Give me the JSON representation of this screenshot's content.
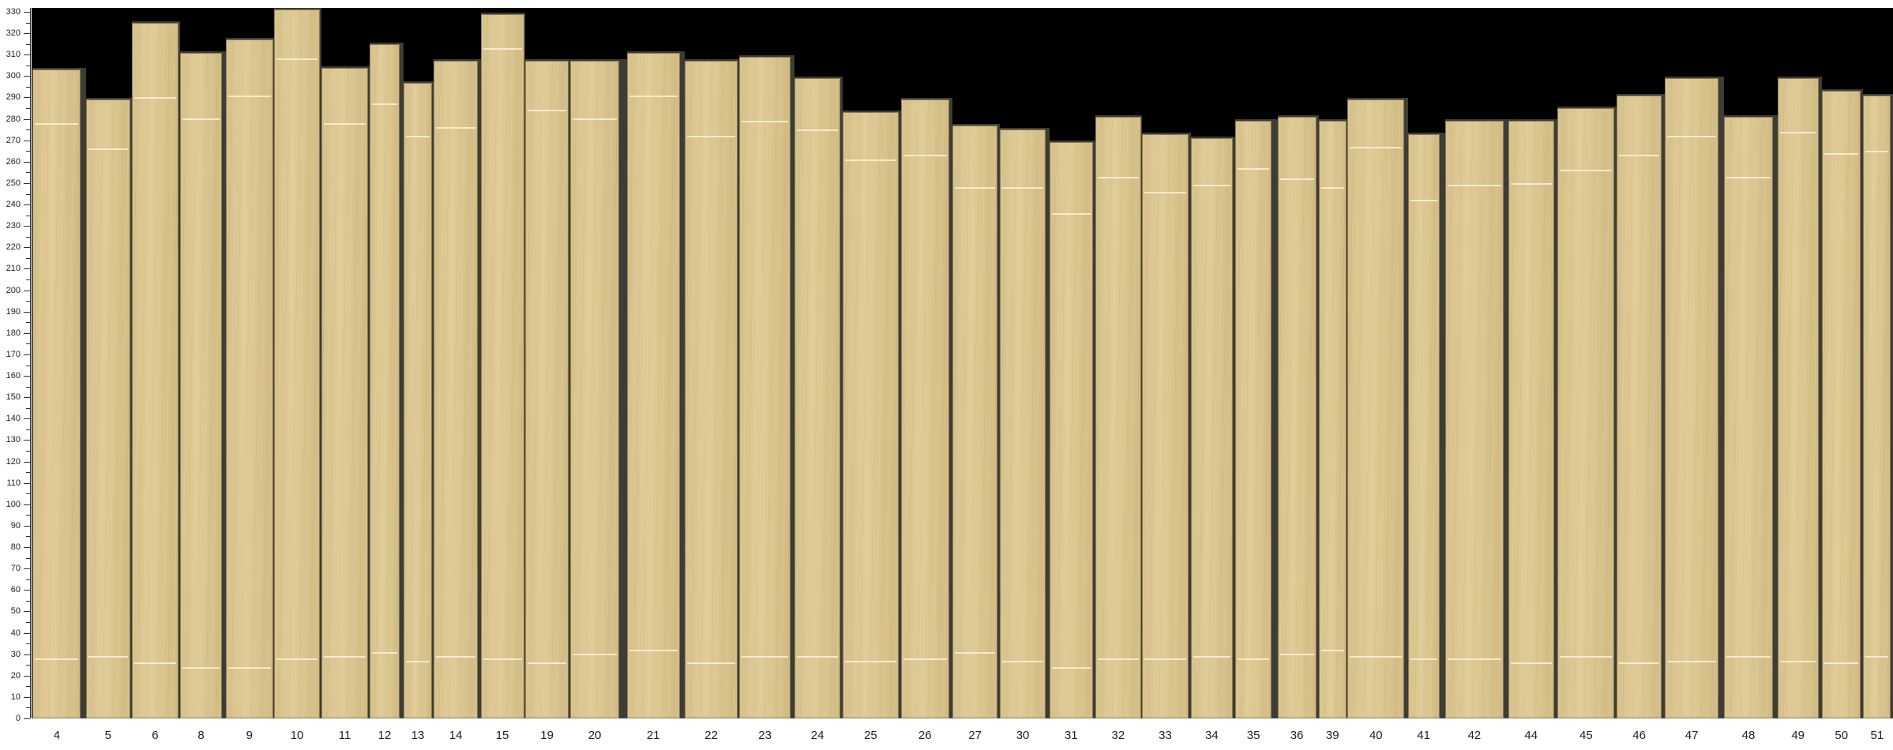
{
  "y_axis": {
    "min": 0,
    "max": 330,
    "major_step": 10,
    "minor_step": 5
  },
  "colors": {
    "plank": "#d9c48e",
    "background": "#000000",
    "gap": "#3d3d36",
    "mark": "#f6eed6"
  },
  "planks": [
    {
      "label": "4",
      "length": 303,
      "marks": [
        27,
        277
      ]
    },
    {
      "label": "5",
      "length": 289,
      "marks": [
        28,
        265
      ]
    },
    {
      "label": "6",
      "length": 325,
      "marks": [
        25,
        289
      ]
    },
    {
      "label": "8",
      "length": 311,
      "marks": [
        23,
        279
      ]
    },
    {
      "label": "9",
      "length": 317,
      "marks": [
        23,
        290
      ]
    },
    {
      "label": "10",
      "length": 331,
      "marks": [
        27,
        307
      ]
    },
    {
      "label": "11",
      "length": 304,
      "marks": [
        28,
        277
      ]
    },
    {
      "label": "12",
      "length": 315,
      "marks": [
        30,
        286
      ]
    },
    {
      "label": "13",
      "length": 297,
      "marks": [
        26,
        271
      ]
    },
    {
      "label": "14",
      "length": 307,
      "marks": [
        28,
        275
      ]
    },
    {
      "label": "15",
      "length": 329,
      "marks": [
        27,
        312
      ]
    },
    {
      "label": "19",
      "length": 307,
      "marks": [
        25,
        283
      ]
    },
    {
      "label": "20",
      "length": 307,
      "marks": [
        29,
        279
      ]
    },
    {
      "label": "21",
      "length": 311,
      "marks": [
        31,
        290
      ]
    },
    {
      "label": "22",
      "length": 307,
      "marks": [
        25,
        271
      ]
    },
    {
      "label": "23",
      "length": 309,
      "marks": [
        28,
        278
      ]
    },
    {
      "label": "24",
      "length": 299,
      "marks": [
        28,
        274
      ]
    },
    {
      "label": "25",
      "length": 283,
      "marks": [
        26,
        260
      ]
    },
    {
      "label": "26",
      "length": 289,
      "marks": [
        27,
        262
      ]
    },
    {
      "label": "27",
      "length": 277,
      "marks": [
        30,
        247
      ]
    },
    {
      "label": "30",
      "length": 275,
      "marks": [
        26,
        247
      ]
    },
    {
      "label": "31",
      "length": 269,
      "marks": [
        23,
        235
      ]
    },
    {
      "label": "32",
      "length": 281,
      "marks": [
        27,
        252
      ]
    },
    {
      "label": "33",
      "length": 273,
      "marks": [
        27,
        245
      ]
    },
    {
      "label": "34",
      "length": 271,
      "marks": [
        28,
        248
      ]
    },
    {
      "label": "35",
      "length": 279,
      "marks": [
        27,
        256
      ]
    },
    {
      "label": "36",
      "length": 281,
      "marks": [
        29,
        251
      ]
    },
    {
      "label": "39",
      "length": 279,
      "marks": [
        31,
        247
      ]
    },
    {
      "label": "40",
      "length": 289,
      "marks": [
        28,
        266
      ]
    },
    {
      "label": "41",
      "length": 273,
      "marks": [
        27,
        241
      ]
    },
    {
      "label": "42",
      "length": 279,
      "marks": [
        27,
        248
      ]
    },
    {
      "label": "44",
      "length": 279,
      "marks": [
        25,
        249
      ]
    },
    {
      "label": "45",
      "length": 285,
      "marks": [
        28,
        255
      ]
    },
    {
      "label": "46",
      "length": 291,
      "marks": [
        25,
        262
      ]
    },
    {
      "label": "47",
      "length": 299,
      "marks": [
        26,
        271
      ]
    },
    {
      "label": "48",
      "length": 281,
      "marks": [
        28,
        252
      ]
    },
    {
      "label": "49",
      "length": 299,
      "marks": [
        26,
        273
      ]
    },
    {
      "label": "50",
      "length": 293,
      "marks": [
        25,
        263
      ]
    },
    {
      "label": "51",
      "length": 291,
      "marks": [
        28,
        264
      ]
    }
  ]
}
